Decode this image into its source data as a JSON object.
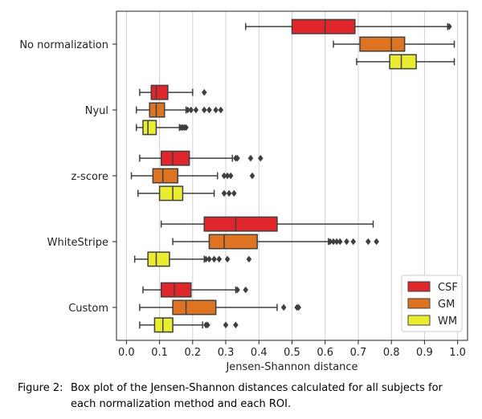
{
  "chart_data": {
    "type": "box",
    "title": "",
    "xlabel": "Jensen-Shannon distance",
    "ylabel": "",
    "xlim": [
      -0.03,
      1.03
    ],
    "xticks": [
      "0.0",
      "0.1",
      "0.2",
      "0.3",
      "0.4",
      "0.5",
      "0.6",
      "0.7",
      "0.8",
      "0.9",
      "1.0"
    ],
    "grid": "vertical",
    "legend_position": "lower right",
    "categories": [
      "No normalization",
      "Nyul",
      "z-score",
      "WhiteStripe",
      "Custom"
    ],
    "series": [
      {
        "name": "CSF",
        "color": "#e0262b",
        "boxes": [
          {
            "min": 0.36,
            "q1": 0.5,
            "median": 0.6,
            "q3": 0.69,
            "max": 0.97,
            "outliers": [
              0.975
            ]
          },
          {
            "min": 0.04,
            "q1": 0.075,
            "median": 0.09,
            "q3": 0.125,
            "max": 0.2,
            "outliers": [
              0.235
            ]
          },
          {
            "min": 0.04,
            "q1": 0.105,
            "median": 0.14,
            "q3": 0.19,
            "max": 0.32,
            "outliers": [
              0.33,
              0.335,
              0.375,
              0.405
            ]
          },
          {
            "min": 0.105,
            "q1": 0.235,
            "median": 0.33,
            "q3": 0.455,
            "max": 0.745,
            "outliers": []
          },
          {
            "min": 0.05,
            "q1": 0.105,
            "median": 0.145,
            "q3": 0.195,
            "max": 0.33,
            "outliers": [
              0.335,
              0.36
            ]
          }
        ]
      },
      {
        "name": "GM",
        "color": "#de7421",
        "boxes": [
          {
            "min": 0.625,
            "q1": 0.705,
            "median": 0.8,
            "q3": 0.84,
            "max": 0.99,
            "outliers": []
          },
          {
            "min": 0.03,
            "q1": 0.07,
            "median": 0.09,
            "q3": 0.115,
            "max": 0.18,
            "outliers": [
              0.185,
              0.195,
              0.21,
              0.235,
              0.25,
              0.27,
              0.285
            ]
          },
          {
            "min": 0.015,
            "q1": 0.08,
            "median": 0.11,
            "q3": 0.155,
            "max": 0.275,
            "outliers": [
              0.295,
              0.305,
              0.315,
              0.38
            ]
          },
          {
            "min": 0.14,
            "q1": 0.25,
            "median": 0.295,
            "q3": 0.395,
            "max": 0.61,
            "outliers": [
              0.615,
              0.625,
              0.635,
              0.645,
              0.665,
              0.685,
              0.73,
              0.755
            ]
          },
          {
            "min": 0.04,
            "q1": 0.14,
            "median": 0.18,
            "q3": 0.27,
            "max": 0.455,
            "outliers": [
              0.475,
              0.515,
              0.52
            ]
          }
        ]
      },
      {
        "name": "WM",
        "color": "#eaed2f",
        "boxes": [
          {
            "min": 0.695,
            "q1": 0.795,
            "median": 0.83,
            "q3": 0.875,
            "max": 0.99,
            "outliers": []
          },
          {
            "min": 0.03,
            "q1": 0.05,
            "median": 0.065,
            "q3": 0.09,
            "max": 0.16,
            "outliers": [
              0.165,
              0.17,
              0.175,
              0.18
            ]
          },
          {
            "min": 0.035,
            "q1": 0.1,
            "median": 0.14,
            "q3": 0.17,
            "max": 0.265,
            "outliers": [
              0.295,
              0.31,
              0.325
            ]
          },
          {
            "min": 0.025,
            "q1": 0.065,
            "median": 0.09,
            "q3": 0.13,
            "max": 0.235,
            "outliers": [
              0.24,
              0.25,
              0.265,
              0.28,
              0.305,
              0.37
            ]
          },
          {
            "min": 0.04,
            "q1": 0.085,
            "median": 0.11,
            "q3": 0.14,
            "max": 0.23,
            "outliers": [
              0.24,
              0.245,
              0.3,
              0.33
            ]
          }
        ]
      }
    ]
  },
  "caption": {
    "label": "Figure 2:",
    "line1": "Box plot of the Jensen-Shannon distances calculated for all subjects for",
    "line2": "each normalization method and each ROI."
  }
}
